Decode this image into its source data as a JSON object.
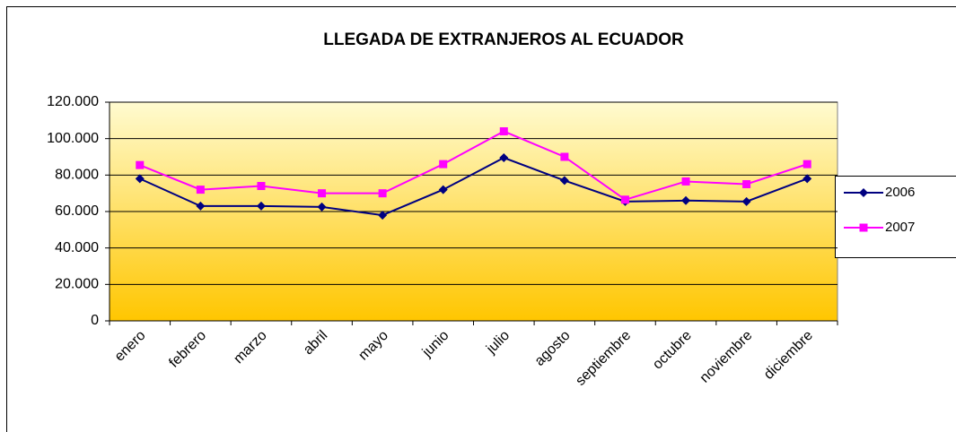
{
  "chart_data": {
    "type": "line",
    "title": "LLEGADA DE EXTRANJEROS AL ECUADOR",
    "categories": [
      "enero",
      "febrero",
      "marzo",
      "abril",
      "mayo",
      "junio",
      "julio",
      "agosto",
      "septiembre",
      "octubre",
      "noviembre",
      "diciembre"
    ],
    "series": [
      {
        "name": "2006",
        "color": "#000080",
        "marker": "diamond",
        "values": [
          78000,
          63000,
          63000,
          62500,
          58000,
          72000,
          89500,
          77000,
          65500,
          66000,
          65500,
          78000
        ]
      },
      {
        "name": "2007",
        "color": "#ff00ff",
        "marker": "square",
        "values": [
          85500,
          72000,
          74000,
          70000,
          70000,
          86000,
          104000,
          90000,
          66500,
          76500,
          75000,
          86000
        ]
      }
    ],
    "ylim": [
      0,
      120000
    ],
    "yticks": [
      0,
      {
        "value": 20000,
        "label": "20.000"
      },
      {
        "value": 40000,
        "label": "40.000"
      },
      {
        "value": 60000,
        "label": "60.000"
      },
      {
        "value": 80000,
        "label": "80.000"
      },
      {
        "value": 100000,
        "label": "100.000"
      },
      {
        "value": 120000,
        "label": "120.000"
      }
    ],
    "grid": true,
    "legend": "right"
  }
}
